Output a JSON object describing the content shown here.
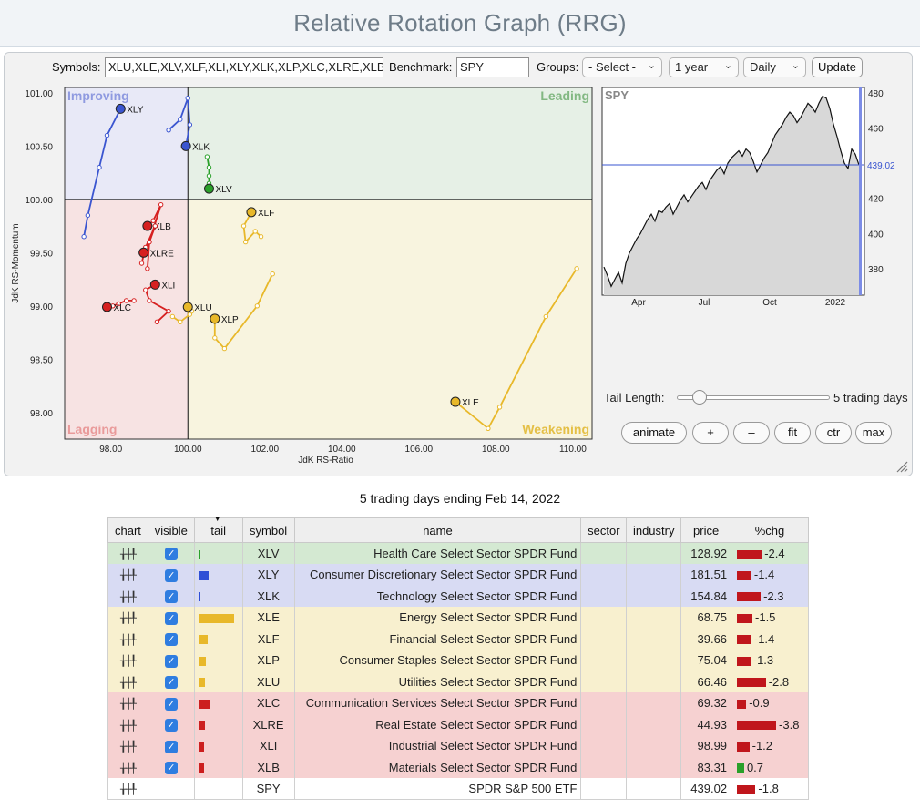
{
  "header": {
    "title": "Relative Rotation Graph (RRG)"
  },
  "controls": {
    "symbols_label": "Symbols:",
    "symbols_value": "XLU,XLE,XLV,XLF,XLI,XLY,XLK,XLP,XLC,XLRE,XLB",
    "benchmark_label": "Benchmark:",
    "benchmark_value": "SPY",
    "groups_label": "Groups:",
    "groups_value": "- Select -",
    "period_value": "1 year",
    "interval_value": "Daily",
    "update_label": "Update"
  },
  "rrg": {
    "quadrants": {
      "improving": "Improving",
      "leading": "Leading",
      "lagging": "Lagging",
      "weakening": "Weakening"
    },
    "quadrant_colors": {
      "improving": "#e8e9f7",
      "leading": "#e6f0e6",
      "lagging": "#f7e3e3",
      "weakening": "#f8f4df"
    },
    "x_axis_label": "JdK RS-Ratio",
    "y_axis_label": "JdK RS-Momentum",
    "x_ticks": [
      "98.00",
      "100.00",
      "102.00",
      "104.00",
      "106.00",
      "108.00",
      "110.00"
    ],
    "y_ticks": [
      "101.00",
      "100.50",
      "100.00",
      "99.50",
      "99.00",
      "98.50",
      "98.00"
    ],
    "xlim": [
      96.8,
      110.5
    ],
    "ylim": [
      97.75,
      101.05
    ],
    "series": [
      {
        "name": "XLY",
        "color": "#3a55d0",
        "points": [
          [
            97.3,
            99.65
          ],
          [
            97.4,
            99.85
          ],
          [
            97.7,
            100.3
          ],
          [
            97.9,
            100.6
          ],
          [
            98.25,
            100.85
          ]
        ]
      },
      {
        "name": "XLK",
        "color": "#3a55d0",
        "points": [
          [
            99.5,
            100.65
          ],
          [
            99.8,
            100.75
          ],
          [
            100.0,
            100.95
          ],
          [
            100.05,
            100.7
          ],
          [
            99.95,
            100.5
          ]
        ]
      },
      {
        "name": "XLV",
        "color": "#2aa02a",
        "points": [
          [
            100.5,
            100.4
          ],
          [
            100.55,
            100.3
          ],
          [
            100.55,
            100.22
          ],
          [
            100.55,
            100.15
          ],
          [
            100.55,
            100.1
          ]
        ]
      },
      {
        "name": "XLF",
        "color": "#e8b82a",
        "points": [
          [
            101.9,
            99.65
          ],
          [
            101.75,
            99.7
          ],
          [
            101.5,
            99.6
          ],
          [
            101.45,
            99.75
          ],
          [
            101.65,
            99.88
          ]
        ]
      },
      {
        "name": "XLB",
        "color": "#d62020",
        "points": [
          [
            98.95,
            99.35
          ],
          [
            99.0,
            99.6
          ],
          [
            99.3,
            99.95
          ],
          [
            99.1,
            99.8
          ],
          [
            98.95,
            99.75
          ]
        ]
      },
      {
        "name": "XLRE",
        "color": "#d62020",
        "points": [
          [
            98.8,
            99.4
          ],
          [
            98.9,
            99.55
          ],
          [
            99.15,
            99.75
          ],
          [
            99.0,
            99.6
          ],
          [
            98.85,
            99.5
          ]
        ]
      },
      {
        "name": "XLI",
        "color": "#d62020",
        "points": [
          [
            99.2,
            98.85
          ],
          [
            99.5,
            98.95
          ],
          [
            99.0,
            99.05
          ],
          [
            98.9,
            99.15
          ],
          [
            99.15,
            99.2
          ]
        ]
      },
      {
        "name": "XLC",
        "color": "#d62020",
        "points": [
          [
            98.6,
            99.05
          ],
          [
            98.4,
            99.05
          ],
          [
            98.2,
            99.02
          ],
          [
            98.05,
            99.0
          ],
          [
            97.9,
            98.99
          ]
        ]
      },
      {
        "name": "XLU",
        "color": "#e8b82a",
        "points": [
          [
            99.6,
            98.9
          ],
          [
            99.8,
            98.85
          ],
          [
            100.05,
            98.92
          ],
          [
            100.1,
            98.95
          ],
          [
            100.0,
            98.99
          ]
        ]
      },
      {
        "name": "XLP",
        "color": "#e8b82a",
        "points": [
          [
            102.2,
            99.3
          ],
          [
            101.8,
            99.0
          ],
          [
            100.95,
            98.6
          ],
          [
            100.7,
            98.7
          ],
          [
            100.7,
            98.88
          ]
        ]
      },
      {
        "name": "XLE",
        "color": "#e8b82a",
        "points": [
          [
            110.1,
            99.35
          ],
          [
            109.3,
            98.9
          ],
          [
            108.1,
            98.05
          ],
          [
            107.8,
            97.85
          ],
          [
            106.95,
            98.1
          ]
        ]
      }
    ]
  },
  "spy_chart": {
    "title": "SPY",
    "x_ticks": [
      "Apr",
      "Jul",
      "Oct",
      "2022"
    ],
    "y_ticks": [
      "480",
      "460",
      "420",
      "400",
      "380"
    ],
    "ylim": [
      365,
      483
    ],
    "last_value": "439.02",
    "values": [
      381,
      376,
      370,
      374,
      378,
      372,
      383,
      389,
      393,
      397,
      400,
      404,
      408,
      411,
      407,
      413,
      412,
      415,
      417,
      411,
      415,
      419,
      422,
      418,
      421,
      424,
      427,
      429,
      425,
      430,
      433,
      436,
      438,
      434,
      440,
      443,
      445,
      447,
      444,
      448,
      446,
      441,
      435,
      439,
      443,
      446,
      451,
      456,
      459,
      462,
      466,
      469,
      467,
      463,
      466,
      470,
      474,
      472,
      469,
      474,
      478,
      477,
      471,
      462,
      455,
      447,
      440,
      437,
      448,
      445,
      439
    ]
  },
  "tail_control": {
    "label": "Tail Length:",
    "value_text": "5 trading days",
    "value": 5
  },
  "buttons": {
    "animate": "animate",
    "plus": "+",
    "minus": "–",
    "fit": "fit",
    "ctr": "ctr",
    "max": "max"
  },
  "caption": "5 trading days ending Feb 14, 2022",
  "table": {
    "headers": [
      "chart",
      "visible",
      "tail",
      "symbol",
      "name",
      "sector",
      "industry",
      "price",
      "%chg"
    ],
    "rows": [
      {
        "symbol": "XLV",
        "name": "Health Care Select Sector SPDR Fund",
        "price": "128.92",
        "chg": "-2.4",
        "chg_value": -2.4,
        "tail": 0.06,
        "tail_color": "#2aa02a",
        "row_color": "#d4e9d2",
        "visible": true
      },
      {
        "symbol": "XLY",
        "name": "Consumer Discretionary Select Sector SPDR Fund",
        "price": "181.51",
        "chg": "-1.4",
        "chg_value": -1.4,
        "tail": 0.28,
        "tail_color": "#2e4fd6",
        "row_color": "#d8dbf3",
        "visible": true
      },
      {
        "symbol": "XLK",
        "name": "Technology Select Sector SPDR Fund",
        "price": "154.84",
        "chg": "-2.3",
        "chg_value": -2.3,
        "tail": 0.05,
        "tail_color": "#2e4fd6",
        "row_color": "#d8dbf3",
        "visible": true
      },
      {
        "symbol": "XLE",
        "name": "Energy Select Sector SPDR Fund",
        "price": "68.75",
        "chg": "-1.5",
        "chg_value": -1.5,
        "tail": 1.0,
        "tail_color": "#e8b82a",
        "row_color": "#f8f0cf",
        "visible": true
      },
      {
        "symbol": "XLF",
        "name": "Financial Select Sector SPDR Fund",
        "price": "39.66",
        "chg": "-1.4",
        "chg_value": -1.4,
        "tail": 0.25,
        "tail_color": "#e8b82a",
        "row_color": "#f8f0cf",
        "visible": true
      },
      {
        "symbol": "XLP",
        "name": "Consumer Staples Select Sector SPDR Fund",
        "price": "75.04",
        "chg": "-1.3",
        "chg_value": -1.3,
        "tail": 0.2,
        "tail_color": "#e8b82a",
        "row_color": "#f8f0cf",
        "visible": true
      },
      {
        "symbol": "XLU",
        "name": "Utilities Select Sector SPDR Fund",
        "price": "66.46",
        "chg": "-2.8",
        "chg_value": -2.8,
        "tail": 0.18,
        "tail_color": "#e8b82a",
        "row_color": "#f8f0cf",
        "visible": true
      },
      {
        "symbol": "XLC",
        "name": "Communication Services Select Sector SPDR Fund",
        "price": "69.32",
        "chg": "-0.9",
        "chg_value": -0.9,
        "tail": 0.32,
        "tail_color": "#cc1f1f",
        "row_color": "#f6d1d1",
        "visible": true
      },
      {
        "symbol": "XLRE",
        "name": "Real Estate Select Sector SPDR Fund",
        "price": "44.93",
        "chg": "-3.8",
        "chg_value": -3.8,
        "tail": 0.18,
        "tail_color": "#cc1f1f",
        "row_color": "#f6d1d1",
        "visible": true
      },
      {
        "symbol": "XLI",
        "name": "Industrial Select Sector SPDR Fund",
        "price": "98.99",
        "chg": "-1.2",
        "chg_value": -1.2,
        "tail": 0.15,
        "tail_color": "#cc1f1f",
        "row_color": "#f6d1d1",
        "visible": true
      },
      {
        "symbol": "XLB",
        "name": "Materials Select Sector SPDR Fund",
        "price": "83.31",
        "chg": "0.7",
        "chg_value": 0.7,
        "tail": 0.15,
        "tail_color": "#cc1f1f",
        "row_color": "#f6d1d1",
        "visible": true
      },
      {
        "symbol": "SPY",
        "name": "SPDR S&P 500 ETF",
        "price": "439.02",
        "chg": "-1.8",
        "chg_value": -1.8,
        "tail": 0,
        "tail_color": "#cc1f1f",
        "row_color": "#ffffff",
        "visible": false
      }
    ]
  }
}
